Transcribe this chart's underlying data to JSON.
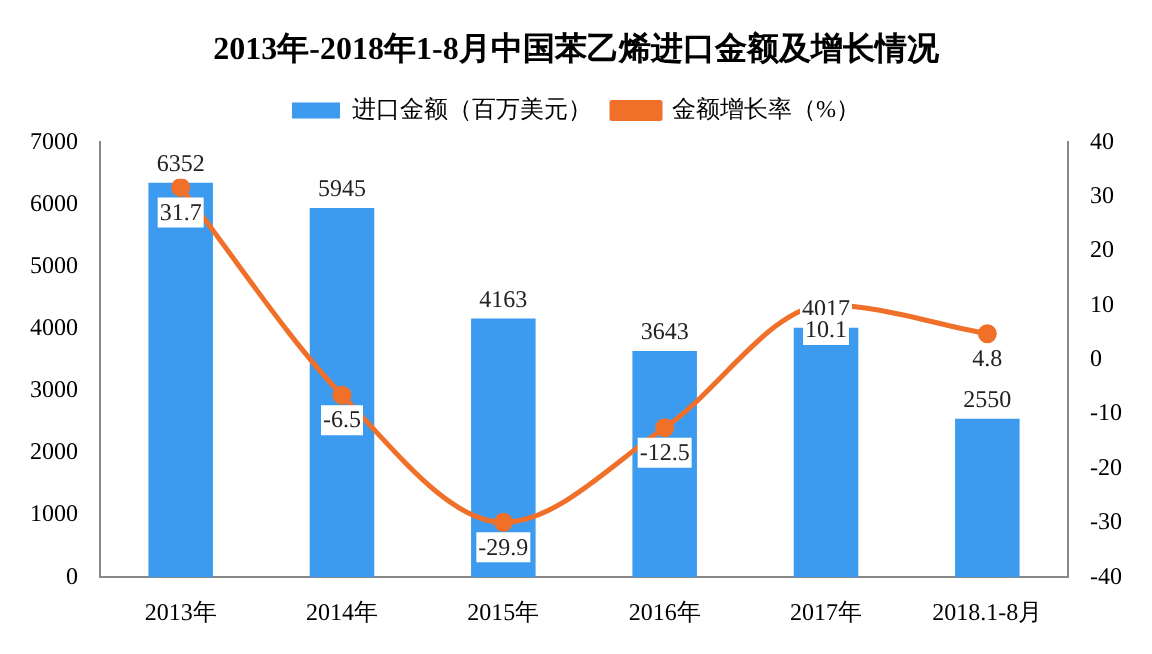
{
  "chart_data": {
    "type": "bar",
    "title": "2013年-2018年1-8月中国苯乙烯进口金额及增长情况",
    "categories": [
      "2013年",
      "2014年",
      "2015年",
      "2016年",
      "2017年",
      "2018.1-8月"
    ],
    "series": [
      {
        "name": "进口金额（百万美元）",
        "color": "#3d9bef",
        "values": [
          6352,
          5945,
          4163,
          3643,
          4017,
          2550
        ]
      },
      {
        "name": "金额增长率（%）",
        "type": "line",
        "axis": "y2",
        "color": "#f0702a",
        "marker": "circle",
        "values": [
          31.7,
          -6.5,
          -29.9,
          -12.5,
          10.1,
          4.8
        ]
      }
    ],
    "ylim": [
      0,
      7000
    ],
    "yticks": [
      0,
      1000,
      2000,
      3000,
      4000,
      5000,
      6000,
      7000
    ],
    "y2lim": [
      -40,
      40
    ],
    "y2ticks": [
      -40,
      -30,
      -20,
      -10,
      0,
      10,
      20,
      30,
      40
    ],
    "data_labels": true,
    "legend": "top",
    "grid": false
  }
}
